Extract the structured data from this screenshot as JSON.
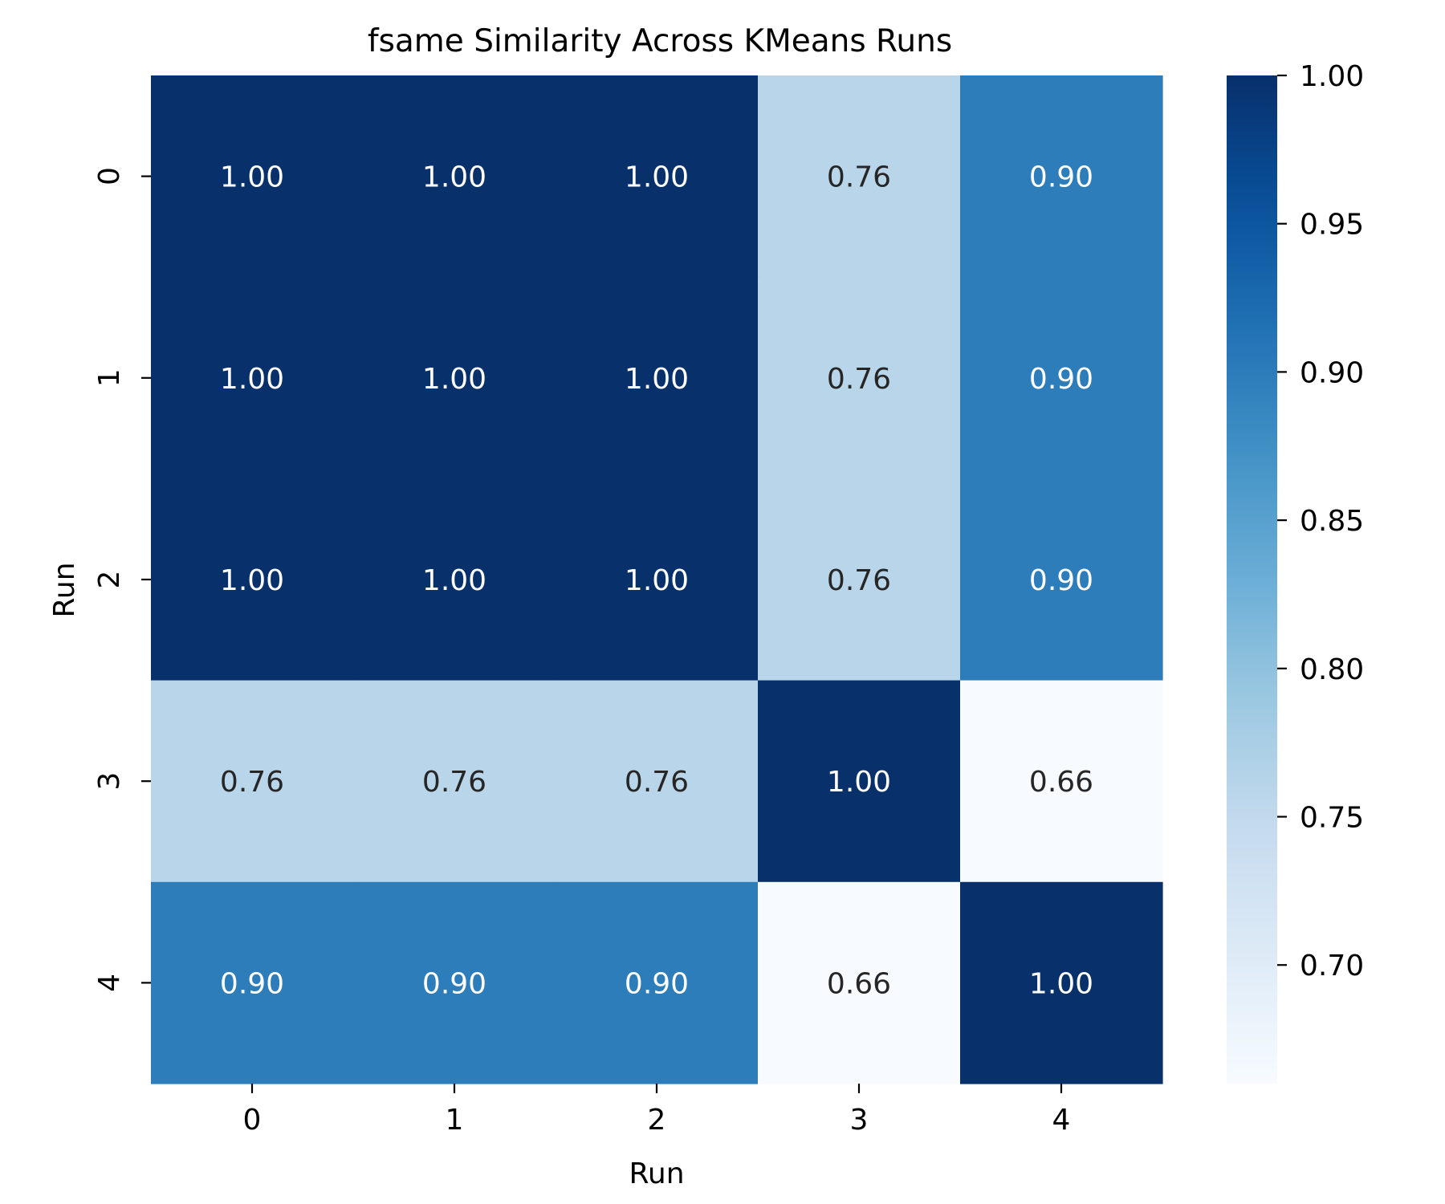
{
  "chart_data": {
    "type": "heatmap",
    "title": "fsame Similarity Across KMeans Runs",
    "xlabel": "Run",
    "ylabel": "Run",
    "x_categories": [
      "0",
      "1",
      "2",
      "3",
      "4"
    ],
    "y_categories": [
      "0",
      "1",
      "2",
      "3",
      "4"
    ],
    "values": [
      [
        1.0,
        1.0,
        1.0,
        0.76,
        0.9
      ],
      [
        1.0,
        1.0,
        1.0,
        0.76,
        0.9
      ],
      [
        1.0,
        1.0,
        1.0,
        0.76,
        0.9
      ],
      [
        0.76,
        0.76,
        0.76,
        1.0,
        0.66
      ],
      [
        0.9,
        0.9,
        0.9,
        0.66,
        1.0
      ]
    ],
    "cell_labels": [
      [
        "1.00",
        "1.00",
        "1.00",
        "0.76",
        "0.90"
      ],
      [
        "1.00",
        "1.00",
        "1.00",
        "0.76",
        "0.90"
      ],
      [
        "1.00",
        "1.00",
        "1.00",
        "0.76",
        "0.90"
      ],
      [
        "0.76",
        "0.76",
        "0.76",
        "1.00",
        "0.66"
      ],
      [
        "0.90",
        "0.90",
        "0.90",
        "0.66",
        "1.00"
      ]
    ],
    "colormap": "Blues",
    "colorbar": {
      "range": [
        0.66,
        1.0
      ],
      "ticks": [
        1.0,
        0.95,
        0.9,
        0.85,
        0.8,
        0.75,
        0.7
      ],
      "tick_labels": [
        "1.00",
        "0.95",
        "0.90",
        "0.85",
        "0.80",
        "0.75",
        "0.70"
      ],
      "placement": "right"
    },
    "grid": false,
    "colors": {
      "low": "#f7fbff",
      "high": "#08306b",
      "text_on_dark": "#ffffff",
      "text_on_light": "#262626"
    }
  }
}
